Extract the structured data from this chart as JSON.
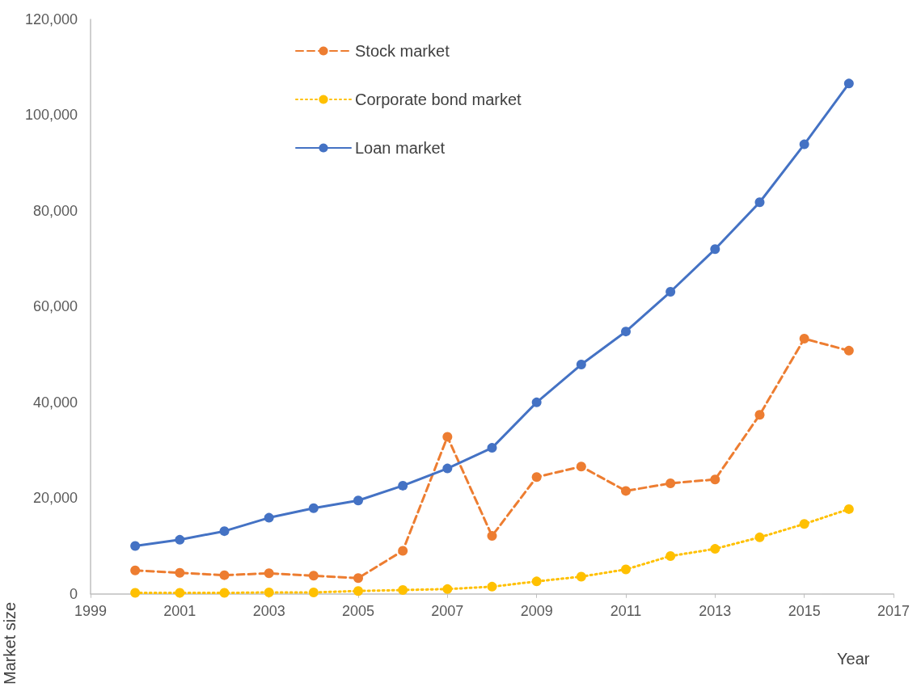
{
  "chart_data": {
    "type": "line",
    "xlabel": "Year",
    "ylabel": "Market size",
    "x": [
      2000,
      2001,
      2002,
      2003,
      2004,
      2005,
      2006,
      2007,
      2008,
      2009,
      2010,
      2011,
      2012,
      2013,
      2014,
      2015,
      2016
    ],
    "series": [
      {
        "name": "Stock market",
        "color": "#ed7d31",
        "line_style": "dashed",
        "values": [
          4900,
          4400,
          3900,
          4300,
          3800,
          3300,
          9000,
          32800,
          12100,
          24400,
          26600,
          21500,
          23100,
          23900,
          37400,
          53300,
          50800
        ]
      },
      {
        "name": "Corporate bond market",
        "color": "#ffc000",
        "line_style": "dotted",
        "values": [
          200,
          200,
          200,
          300,
          300,
          600,
          800,
          1000,
          1500,
          2600,
          3600,
          5100,
          7900,
          9400,
          11800,
          14600,
          17700
        ]
      },
      {
        "name": "Loan market",
        "color": "#4472c4",
        "line_style": "solid",
        "values": [
          10000,
          11300,
          13100,
          15900,
          17900,
          19500,
          22600,
          26200,
          30500,
          40000,
          47900,
          54800,
          63100,
          72000,
          81800,
          93900,
          106600
        ]
      }
    ],
    "xlim": [
      1999,
      2017
    ],
    "xticks": [
      1999,
      2001,
      2003,
      2005,
      2007,
      2009,
      2011,
      2013,
      2015,
      2017
    ],
    "ylim": [
      0,
      120000
    ],
    "yticks": [
      0,
      {
        "value": 20000,
        "label": "20,000"
      },
      {
        "value": 40000,
        "label": "40,000"
      },
      {
        "value": 60000,
        "label": "60,000"
      },
      {
        "value": 80000,
        "label": "80,000"
      },
      {
        "value": 100000,
        "label": "100,000"
      },
      {
        "value": 120000,
        "label": "120,000"
      }
    ],
    "grid": false,
    "legend": "top left",
    "marker": "circle"
  }
}
